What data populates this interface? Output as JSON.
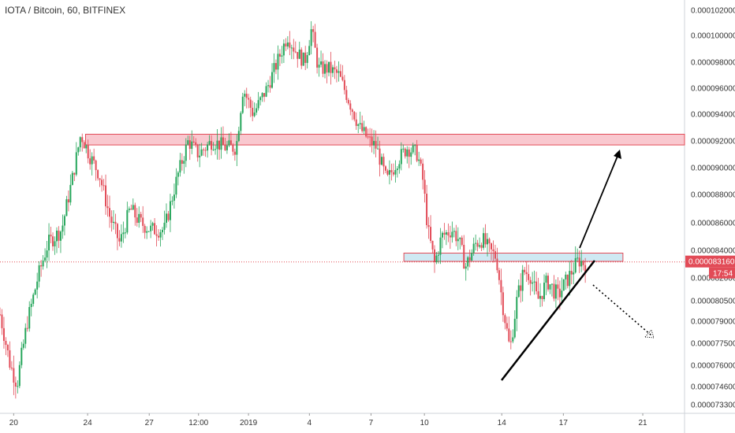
{
  "title": "IOTA / Bitcoin, 60, BITFINEX",
  "price_badge": {
    "value": "0.000083160",
    "countdown": "17:54",
    "color": "#e24b57"
  },
  "colors": {
    "up": "#26a65b",
    "down": "#e24b57",
    "resistance_fill": "#f9c8cf",
    "resistance_stroke": "#e24b57",
    "support_fill": "#cfe9f3",
    "support_stroke": "#e24b57",
    "trend": "#000000"
  },
  "chart_data": {
    "type": "candlestick",
    "title": "IOTA / Bitcoin, 60, BITFINEX",
    "x_ticks": [
      {
        "label": "20",
        "pos": 0.02
      },
      {
        "label": "24",
        "pos": 0.128
      },
      {
        "label": "27",
        "pos": 0.218
      },
      {
        "label": "12:00",
        "pos": 0.29
      },
      {
        "label": "2019",
        "pos": 0.363
      },
      {
        "label": "4",
        "pos": 0.452
      },
      {
        "label": "7",
        "pos": 0.542
      },
      {
        "label": "10",
        "pos": 0.62
      },
      {
        "label": "14",
        "pos": 0.733
      },
      {
        "label": "17",
        "pos": 0.823
      },
      {
        "label": "21",
        "pos": 0.939
      }
    ],
    "y_ticks": [
      "0.0001020000",
      "0.0001000000",
      "0.0000980000",
      "0.0000960000",
      "0.0000940000",
      "0.0000920000",
      "0.0000900000",
      "0.0000880000",
      "0.0000860000",
      "0.0000840000",
      "0.0000820000",
      "0.0000805000",
      "0.0000790000",
      "0.0000775000",
      "0.0000760000",
      "0.0000746000",
      "0.0000733000"
    ],
    "y_tick_values": [
      0.000102,
      0.0001,
      9.8e-05,
      9.6e-05,
      9.4e-05,
      9.2e-05,
      9e-05,
      8.8e-05,
      8.6e-05,
      8.4e-05,
      8.2e-05,
      8.05e-05,
      7.9e-05,
      7.75e-05,
      7.6e-05,
      7.46e-05,
      7.33e-05
    ],
    "price_path": [
      [
        0,
        7.95e-05
      ],
      [
        0.015,
        7.6e-05
      ],
      [
        0.025,
        7.48e-05
      ],
      [
        0.04,
        7.9e-05
      ],
      [
        0.055,
        8.2e-05
      ],
      [
        0.07,
        8.45e-05
      ],
      [
        0.09,
        8.55e-05
      ],
      [
        0.105,
        8.9e-05
      ],
      [
        0.118,
        9.25e-05
      ],
      [
        0.13,
        9.1e-05
      ],
      [
        0.145,
        8.95e-05
      ],
      [
        0.16,
        8.65e-05
      ],
      [
        0.175,
        8.45e-05
      ],
      [
        0.19,
        8.7e-05
      ],
      [
        0.205,
        8.6e-05
      ],
      [
        0.22,
        8.55e-05
      ],
      [
        0.24,
        8.55e-05
      ],
      [
        0.26,
        8.95e-05
      ],
      [
        0.275,
        9.2e-05
      ],
      [
        0.29,
        9.1e-05
      ],
      [
        0.31,
        9.2e-05
      ],
      [
        0.33,
        9.15e-05
      ],
      [
        0.345,
        9.15e-05
      ],
      [
        0.355,
        9.6e-05
      ],
      [
        0.37,
        9.4e-05
      ],
      [
        0.39,
        9.6e-05
      ],
      [
        0.405,
        9.8e-05
      ],
      [
        0.42,
        0.0001
      ],
      [
        0.43,
        9.9e-05
      ],
      [
        0.445,
        9.8e-05
      ],
      [
        0.455,
        0.0001005
      ],
      [
        0.465,
        9.75e-05
      ],
      [
        0.48,
        9.75e-05
      ],
      [
        0.495,
        9.7e-05
      ],
      [
        0.51,
        9.5e-05
      ],
      [
        0.525,
        9.3e-05
      ],
      [
        0.54,
        9.2e-05
      ],
      [
        0.55,
        9.15e-05
      ],
      [
        0.565,
        8.9e-05
      ],
      [
        0.58,
        9.05e-05
      ],
      [
        0.595,
        9.15e-05
      ],
      [
        0.61,
        9.1e-05
      ],
      [
        0.618,
        8.9e-05
      ],
      [
        0.625,
        8.55e-05
      ],
      [
        0.635,
        8.3e-05
      ],
      [
        0.645,
        8.5e-05
      ],
      [
        0.66,
        8.55e-05
      ],
      [
        0.67,
        8.48e-05
      ],
      [
        0.68,
        8.28e-05
      ],
      [
        0.695,
        8.45e-05
      ],
      [
        0.705,
        8.48e-05
      ],
      [
        0.715,
        8.4e-05
      ],
      [
        0.725,
        8.35e-05
      ],
      [
        0.735,
        8e-05
      ],
      [
        0.745,
        7.7e-05
      ],
      [
        0.755,
        8.05e-05
      ],
      [
        0.765,
        8.25e-05
      ],
      [
        0.775,
        8.22e-05
      ],
      [
        0.785,
        8.05e-05
      ],
      [
        0.8,
        8.18e-05
      ],
      [
        0.815,
        8.08e-05
      ],
      [
        0.83,
        8.2e-05
      ],
      [
        0.845,
        8.33e-05
      ],
      [
        0.855,
        8.3e-05
      ]
    ],
    "annotations": {
      "resistance_zone": [
        9.17e-05,
        9.25e-05
      ],
      "support_zone": [
        8.32e-05,
        8.38e-05
      ],
      "last_price": 8.316e-05
    }
  }
}
